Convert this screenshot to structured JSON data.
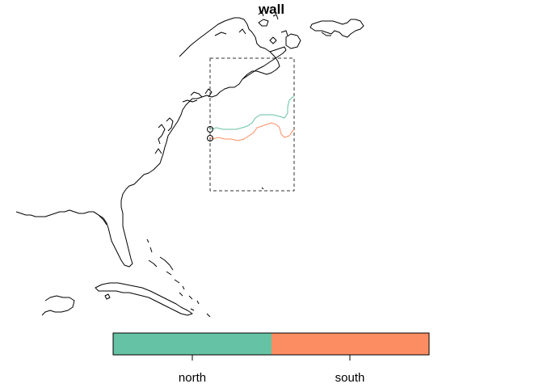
{
  "title": "wall",
  "legend": {
    "items": [
      {
        "label": "north",
        "color": "#66c2a5"
      },
      {
        "label": "south",
        "color": "#fc8d62"
      }
    ]
  },
  "colors": {
    "coastline": "#000000",
    "bounding_box": "#333333"
  }
}
